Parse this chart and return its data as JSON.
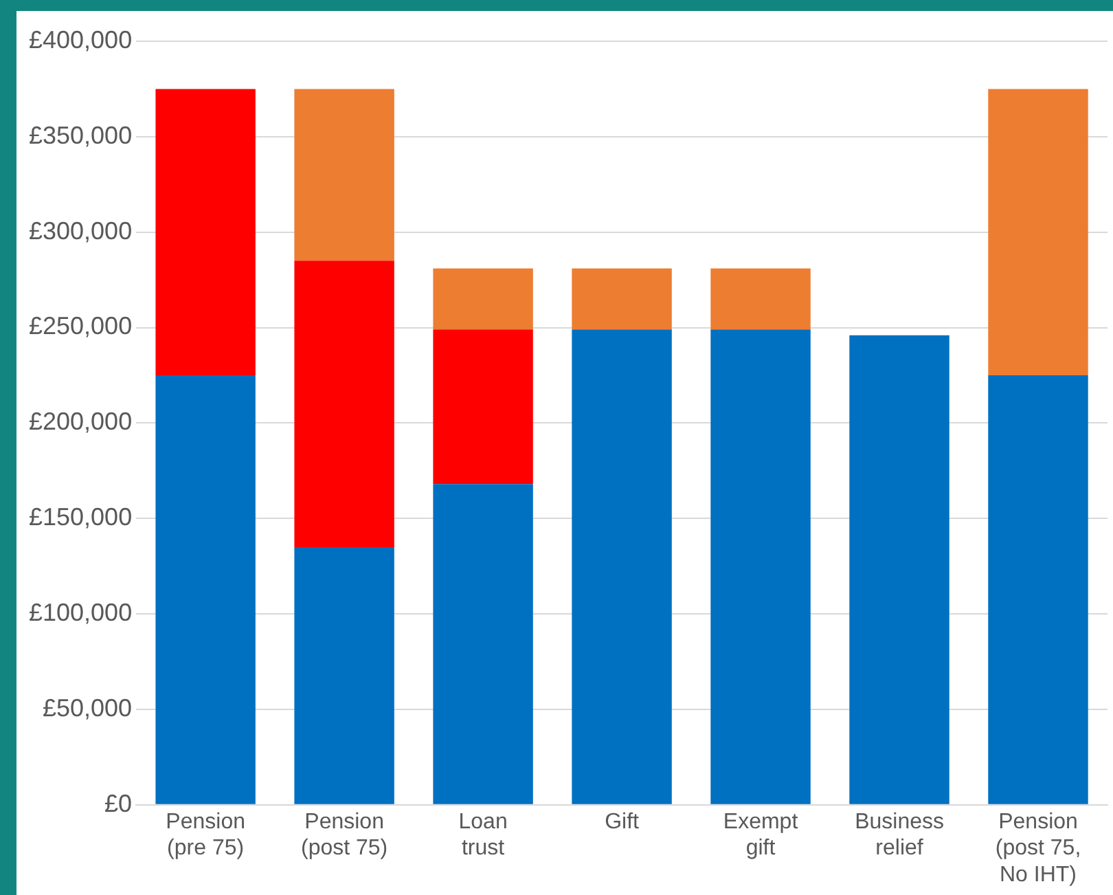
{
  "chart_data": {
    "type": "bar",
    "stacked": true,
    "grid": "y",
    "categories": [
      "Pension (pre 75)",
      "Pension (post 75)",
      "Loan trust",
      "Gift",
      "Exempt gift",
      "Business relief",
      "Pension (post 75, No IHT)"
    ],
    "series": [
      {
        "color": "#0070c0",
        "values": [
          225000,
          135000,
          168000,
          249000,
          249000,
          246000,
          225000
        ]
      },
      {
        "color": "#ff0000",
        "values": [
          150000,
          150000,
          81000,
          null,
          null,
          null,
          null
        ]
      },
      {
        "color": "#ed7d31",
        "values": [
          null,
          90000,
          32000,
          32000,
          32000,
          null,
          150000
        ]
      }
    ],
    "ylim": [
      0,
      400000
    ],
    "yticks": [
      {
        "value": 0,
        "label": "£0"
      },
      {
        "value": 50000,
        "label": "£50,000"
      },
      {
        "value": 100000,
        "label": "£100,000"
      },
      {
        "value": 150000,
        "label": "£150,000"
      },
      {
        "value": 200000,
        "label": "£200,000"
      },
      {
        "value": 250000,
        "label": "£250,000"
      },
      {
        "value": 300000,
        "label": "£300,000"
      },
      {
        "value": 350000,
        "label": "£350,000"
      },
      {
        "value": 400000,
        "label": "£400,000"
      }
    ]
  }
}
